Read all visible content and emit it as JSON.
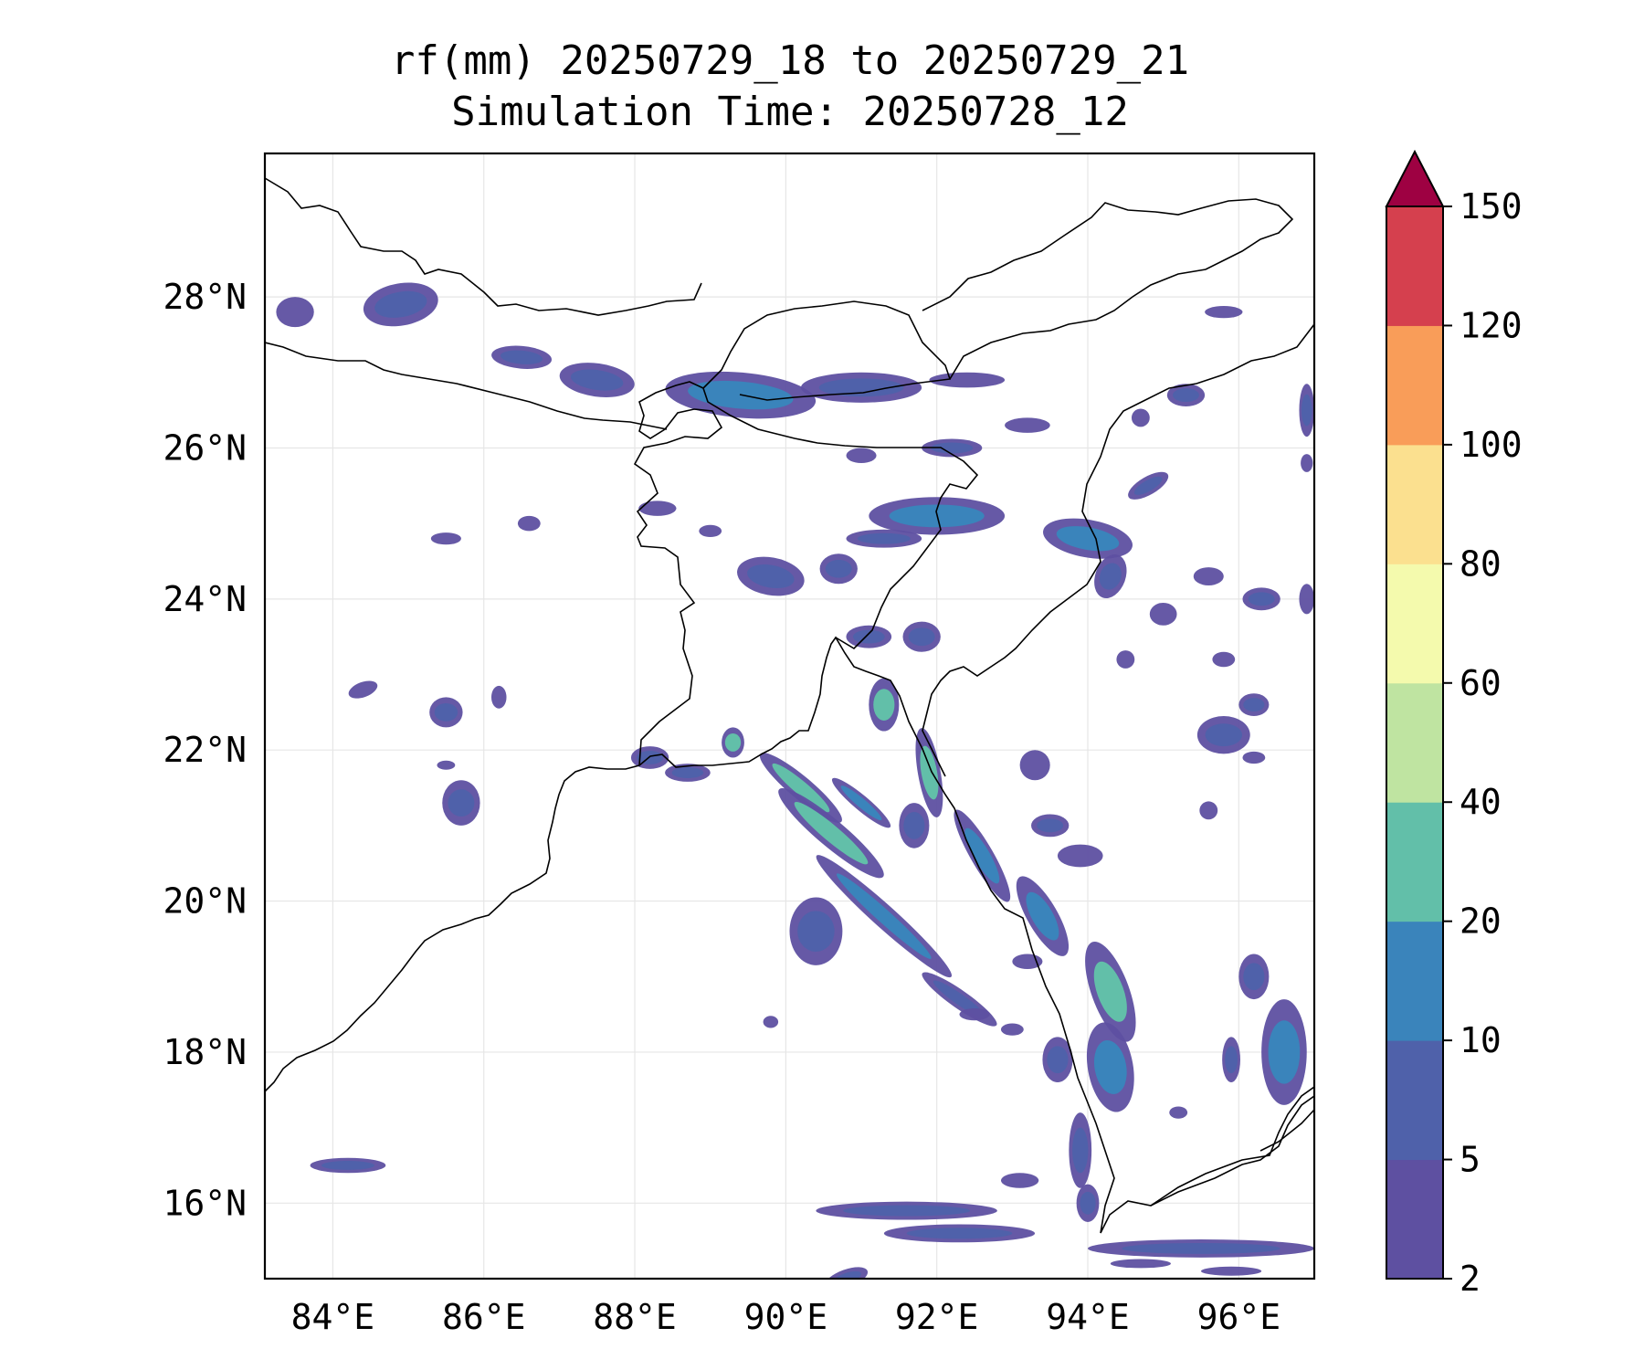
{
  "title": {
    "line1": "rf(mm) 20250729_18 to 20250729_21",
    "line2": "Simulation Time: 20250728_12"
  },
  "map": {
    "extent": {
      "lon": [
        83.1,
        97.0
      ],
      "lat": [
        15.0,
        29.9
      ]
    },
    "lon_ticks": [
      84,
      86,
      88,
      90,
      92,
      94,
      96
    ],
    "lon_labels": [
      "84°E",
      "86°E",
      "88°E",
      "90°E",
      "92°E",
      "94°E",
      "96°E"
    ],
    "lat_ticks": [
      16,
      18,
      20,
      22,
      24,
      26,
      28
    ],
    "lat_labels": [
      "16°N",
      "18°N",
      "20°N",
      "22°N",
      "24°N",
      "26°N",
      "28°N"
    ],
    "grid": true,
    "coast_color": "#000000",
    "background": "#ffffff"
  },
  "colorbar": {
    "orientation": "vertical",
    "position": "right",
    "extend": "max",
    "levels": [
      2,
      5,
      10,
      20,
      40,
      60,
      80,
      100,
      120,
      150
    ],
    "labels": [
      "2",
      "5",
      "10",
      "20",
      "40",
      "60",
      "80",
      "100",
      "120",
      "150"
    ],
    "colors": [
      "#5e50a1",
      "#4f61aa",
      "#3a84bb",
      "#62bfa9",
      "#bfe4a1",
      "#f4faad",
      "#fbe08f",
      "#f99d59",
      "#d5404e"
    ],
    "extend_color": "#9e0142"
  },
  "rain_cells": [
    {
      "lon": 84.9,
      "lat": 27.9,
      "rx": 0.5,
      "ry": 0.28,
      "rot": -10,
      "c": 1
    },
    {
      "lon": 83.5,
      "lat": 27.8,
      "rx": 0.25,
      "ry": 0.2,
      "rot": 0,
      "c": 0
    },
    {
      "lon": 86.5,
      "lat": 27.2,
      "rx": 0.4,
      "ry": 0.15,
      "rot": 5,
      "c": 1
    },
    {
      "lon": 87.5,
      "lat": 26.9,
      "rx": 0.5,
      "ry": 0.22,
      "rot": 8,
      "c": 1
    },
    {
      "lon": 89.4,
      "lat": 26.7,
      "rx": 1.0,
      "ry": 0.3,
      "rot": 5,
      "c": 2
    },
    {
      "lon": 91.0,
      "lat": 26.8,
      "rx": 0.8,
      "ry": 0.2,
      "rot": 0,
      "c": 1
    },
    {
      "lon": 92.4,
      "lat": 26.9,
      "rx": 0.5,
      "ry": 0.1,
      "rot": 0,
      "c": 0
    },
    {
      "lon": 92.2,
      "lat": 26.0,
      "rx": 0.4,
      "ry": 0.12,
      "rot": 0,
      "c": 1
    },
    {
      "lon": 91.0,
      "lat": 25.9,
      "rx": 0.2,
      "ry": 0.1,
      "rot": 0,
      "c": 0
    },
    {
      "lon": 93.2,
      "lat": 26.3,
      "rx": 0.3,
      "ry": 0.1,
      "rot": 0,
      "c": 0
    },
    {
      "lon": 92.0,
      "lat": 25.1,
      "rx": 0.9,
      "ry": 0.25,
      "rot": 0,
      "c": 2
    },
    {
      "lon": 91.3,
      "lat": 24.8,
      "rx": 0.5,
      "ry": 0.12,
      "rot": 0,
      "c": 1
    },
    {
      "lon": 94.0,
      "lat": 24.8,
      "rx": 0.6,
      "ry": 0.25,
      "rot": 10,
      "c": 2
    },
    {
      "lon": 94.8,
      "lat": 25.5,
      "rx": 0.3,
      "ry": 0.12,
      "rot": -30,
      "c": 1
    },
    {
      "lon": 94.3,
      "lat": 24.3,
      "rx": 0.2,
      "ry": 0.3,
      "rot": 20,
      "c": 1
    },
    {
      "lon": 89.8,
      "lat": 24.3,
      "rx": 0.45,
      "ry": 0.25,
      "rot": 10,
      "c": 1
    },
    {
      "lon": 90.7,
      "lat": 24.4,
      "rx": 0.25,
      "ry": 0.2,
      "rot": 0,
      "c": 1
    },
    {
      "lon": 89.0,
      "lat": 24.9,
      "rx": 0.15,
      "ry": 0.08,
      "rot": 0,
      "c": 0
    },
    {
      "lon": 86.6,
      "lat": 25.0,
      "rx": 0.15,
      "ry": 0.1,
      "rot": 0,
      "c": 0
    },
    {
      "lon": 85.5,
      "lat": 24.8,
      "rx": 0.2,
      "ry": 0.08,
      "rot": 0,
      "c": 0
    },
    {
      "lon": 88.3,
      "lat": 25.2,
      "rx": 0.25,
      "ry": 0.1,
      "rot": 0,
      "c": 0
    },
    {
      "lon": 84.4,
      "lat": 22.8,
      "rx": 0.2,
      "ry": 0.1,
      "rot": -20,
      "c": 0
    },
    {
      "lon": 85.5,
      "lat": 22.5,
      "rx": 0.22,
      "ry": 0.2,
      "rot": 0,
      "c": 1
    },
    {
      "lon": 86.2,
      "lat": 22.7,
      "rx": 0.1,
      "ry": 0.15,
      "rot": 0,
      "c": 0
    },
    {
      "lon": 85.5,
      "lat": 21.8,
      "rx": 0.12,
      "ry": 0.06,
      "rot": 0,
      "c": 0
    },
    {
      "lon": 88.2,
      "lat": 21.9,
      "rx": 0.25,
      "ry": 0.15,
      "rot": 0,
      "c": 1
    },
    {
      "lon": 88.7,
      "lat": 21.7,
      "rx": 0.3,
      "ry": 0.12,
      "rot": 0,
      "c": 1
    },
    {
      "lon": 89.3,
      "lat": 22.1,
      "rx": 0.15,
      "ry": 0.2,
      "rot": 0,
      "c": 3
    },
    {
      "lon": 90.2,
      "lat": 21.5,
      "rx": 0.7,
      "ry": 0.15,
      "rot": 40,
      "c": 3
    },
    {
      "lon": 90.6,
      "lat": 20.9,
      "rx": 0.9,
      "ry": 0.18,
      "rot": 40,
      "c": 3
    },
    {
      "lon": 91.0,
      "lat": 21.3,
      "rx": 0.5,
      "ry": 0.1,
      "rot": 40,
      "c": 2
    },
    {
      "lon": 91.3,
      "lat": 19.8,
      "rx": 1.2,
      "ry": 0.15,
      "rot": 42,
      "c": 2
    },
    {
      "lon": 92.3,
      "lat": 18.7,
      "rx": 0.6,
      "ry": 0.12,
      "rot": 35,
      "c": 1
    },
    {
      "lon": 90.4,
      "lat": 19.6,
      "rx": 0.35,
      "ry": 0.45,
      "rot": 0,
      "c": 1
    },
    {
      "lon": 91.3,
      "lat": 22.6,
      "rx": 0.2,
      "ry": 0.35,
      "rot": 0,
      "c": 3
    },
    {
      "lon": 91.9,
      "lat": 21.7,
      "rx": 0.15,
      "ry": 0.6,
      "rot": -10,
      "c": 3
    },
    {
      "lon": 92.6,
      "lat": 20.6,
      "rx": 0.15,
      "ry": 0.7,
      "rot": -30,
      "c": 2
    },
    {
      "lon": 93.4,
      "lat": 19.8,
      "rx": 0.2,
      "ry": 0.6,
      "rot": -30,
      "c": 2
    },
    {
      "lon": 94.3,
      "lat": 18.8,
      "rx": 0.25,
      "ry": 0.7,
      "rot": -20,
      "c": 3
    },
    {
      "lon": 94.3,
      "lat": 17.8,
      "rx": 0.3,
      "ry": 0.6,
      "rot": -10,
      "c": 2
    },
    {
      "lon": 93.9,
      "lat": 16.7,
      "rx": 0.15,
      "ry": 0.5,
      "rot": 0,
      "c": 1
    },
    {
      "lon": 94.0,
      "lat": 16.0,
      "rx": 0.15,
      "ry": 0.25,
      "rot": 0,
      "c": 1
    },
    {
      "lon": 93.6,
      "lat": 17.9,
      "rx": 0.2,
      "ry": 0.3,
      "rot": 0,
      "c": 1
    },
    {
      "lon": 91.8,
      "lat": 23.5,
      "rx": 0.25,
      "ry": 0.2,
      "rot": 0,
      "c": 1
    },
    {
      "lon": 91.1,
      "lat": 23.5,
      "rx": 0.3,
      "ry": 0.15,
      "rot": 0,
      "c": 1
    },
    {
      "lon": 93.3,
      "lat": 21.8,
      "rx": 0.2,
      "ry": 0.2,
      "rot": 0,
      "c": 0
    },
    {
      "lon": 93.5,
      "lat": 21.0,
      "rx": 0.25,
      "ry": 0.15,
      "rot": 0,
      "c": 1
    },
    {
      "lon": 93.9,
      "lat": 20.6,
      "rx": 0.3,
      "ry": 0.15,
      "rot": 0,
      "c": 0
    },
    {
      "lon": 91.7,
      "lat": 21.0,
      "rx": 0.2,
      "ry": 0.3,
      "rot": 0,
      "c": 1
    },
    {
      "lon": 93.2,
      "lat": 19.2,
      "rx": 0.2,
      "ry": 0.1,
      "rot": 0,
      "c": 0
    },
    {
      "lon": 92.5,
      "lat": 18.5,
      "rx": 0.2,
      "ry": 0.08,
      "rot": 0,
      "c": 0
    },
    {
      "lon": 93.0,
      "lat": 18.3,
      "rx": 0.15,
      "ry": 0.08,
      "rot": 0,
      "c": 0
    },
    {
      "lon": 89.8,
      "lat": 18.4,
      "rx": 0.1,
      "ry": 0.08,
      "rot": 0,
      "c": 0
    },
    {
      "lon": 95.8,
      "lat": 22.2,
      "rx": 0.35,
      "ry": 0.25,
      "rot": 0,
      "c": 1
    },
    {
      "lon": 96.2,
      "lat": 22.6,
      "rx": 0.2,
      "ry": 0.15,
      "rot": 0,
      "c": 1
    },
    {
      "lon": 95.6,
      "lat": 21.2,
      "rx": 0.12,
      "ry": 0.12,
      "rot": 0,
      "c": 0
    },
    {
      "lon": 96.2,
      "lat": 21.9,
      "rx": 0.15,
      "ry": 0.08,
      "rot": 0,
      "c": 0
    },
    {
      "lon": 96.2,
      "lat": 19.0,
      "rx": 0.2,
      "ry": 0.3,
      "rot": 0,
      "c": 1
    },
    {
      "lon": 96.6,
      "lat": 18.0,
      "rx": 0.3,
      "ry": 0.7,
      "rot": 0,
      "c": 2
    },
    {
      "lon": 95.9,
      "lat": 17.9,
      "rx": 0.12,
      "ry": 0.3,
      "rot": 0,
      "c": 1
    },
    {
      "lon": 95.2,
      "lat": 17.2,
      "rx": 0.12,
      "ry": 0.08,
      "rot": 0,
      "c": 0
    },
    {
      "lon": 95.6,
      "lat": 24.3,
      "rx": 0.2,
      "ry": 0.12,
      "rot": 0,
      "c": 0
    },
    {
      "lon": 96.3,
      "lat": 24.0,
      "rx": 0.25,
      "ry": 0.15,
      "rot": 0,
      "c": 1
    },
    {
      "lon": 95.0,
      "lat": 23.8,
      "rx": 0.18,
      "ry": 0.15,
      "rot": 0,
      "c": 0
    },
    {
      "lon": 96.9,
      "lat": 24.0,
      "rx": 0.1,
      "ry": 0.2,
      "rot": 0,
      "c": 0
    },
    {
      "lon": 95.8,
      "lat": 23.2,
      "rx": 0.15,
      "ry": 0.1,
      "rot": 0,
      "c": 0
    },
    {
      "lon": 94.5,
      "lat": 23.2,
      "rx": 0.12,
      "ry": 0.12,
      "rot": 0,
      "c": 0
    },
    {
      "lon": 95.3,
      "lat": 26.7,
      "rx": 0.25,
      "ry": 0.15,
      "rot": 0,
      "c": 1
    },
    {
      "lon": 96.9,
      "lat": 26.5,
      "rx": 0.1,
      "ry": 0.35,
      "rot": 0,
      "c": 1
    },
    {
      "lon": 95.8,
      "lat": 27.8,
      "rx": 0.25,
      "ry": 0.08,
      "rot": 0,
      "c": 0
    },
    {
      "lon": 94.7,
      "lat": 26.4,
      "rx": 0.12,
      "ry": 0.12,
      "rot": 0,
      "c": 0
    },
    {
      "lon": 96.9,
      "lat": 25.8,
      "rx": 0.08,
      "ry": 0.12,
      "rot": 0,
      "c": 0
    },
    {
      "lon": 85.7,
      "lat": 21.3,
      "rx": 0.25,
      "ry": 0.3,
      "rot": 0,
      "c": 1
    },
    {
      "lon": 84.2,
      "lat": 16.5,
      "rx": 0.5,
      "ry": 0.1,
      "rot": 0,
      "c": 1
    },
    {
      "lon": 91.6,
      "lat": 15.9,
      "rx": 1.2,
      "ry": 0.12,
      "rot": 0,
      "c": 1
    },
    {
      "lon": 92.3,
      "lat": 15.6,
      "rx": 1.0,
      "ry": 0.12,
      "rot": 0,
      "c": 1
    },
    {
      "lon": 95.5,
      "lat": 15.4,
      "rx": 1.5,
      "ry": 0.12,
      "rot": 0,
      "c": 1
    },
    {
      "lon": 94.7,
      "lat": 15.2,
      "rx": 0.4,
      "ry": 0.06,
      "rot": 0,
      "c": 0
    },
    {
      "lon": 93.1,
      "lat": 16.3,
      "rx": 0.25,
      "ry": 0.1,
      "rot": 0,
      "c": 0
    },
    {
      "lon": 90.8,
      "lat": 15.0,
      "rx": 0.3,
      "ry": 0.12,
      "rot": -20,
      "c": 1
    },
    {
      "lon": 95.9,
      "lat": 15.1,
      "rx": 0.4,
      "ry": 0.06,
      "rot": 0,
      "c": 0
    }
  ]
}
